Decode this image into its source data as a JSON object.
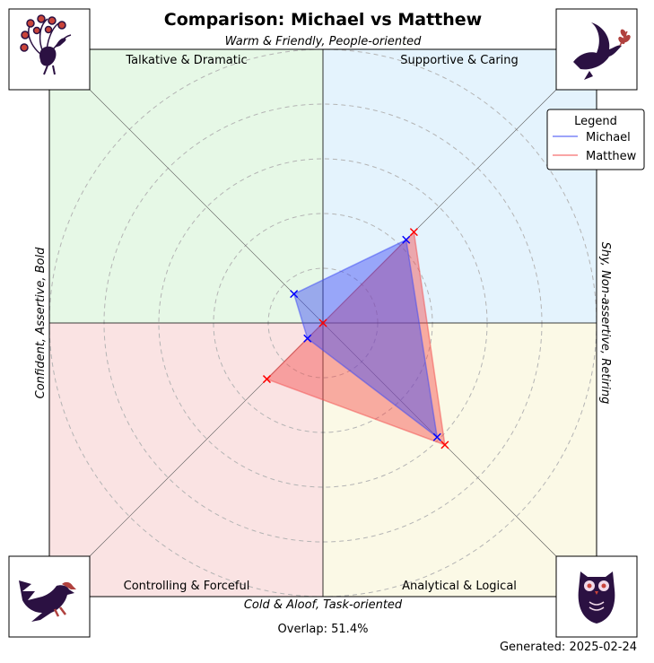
{
  "chart_data": {
    "type": "radar",
    "title": "Comparison: Michael vs Matthew",
    "axes": {
      "top": "Warm & Friendly, People-oriented",
      "bottom": "Cold & Aloof, Task-oriented",
      "left": "Confident, Assertive, Bold",
      "right": "Shy, Non-assertive, Retiring"
    },
    "quadrants": {
      "top_left": {
        "label": "Talkative & Dramatic",
        "color": "#e6f8e6",
        "icon": "peacock-icon"
      },
      "top_right": {
        "label": "Supportive & Caring",
        "color": "#e4f3fd",
        "icon": "dove-icon"
      },
      "bottom_left": {
        "label": "Controlling & Forceful",
        "color": "#fae3e3",
        "icon": "eagle-icon"
      },
      "bottom_right": {
        "label": "Analytical & Logical",
        "color": "#fbf9e6",
        "icon": "owl-icon"
      }
    },
    "range": [
      0,
      10
    ],
    "rings": [
      2,
      4,
      6,
      8,
      10
    ],
    "grid": true,
    "directions": [
      "Supportive & Caring",
      "Talkative & Dramatic",
      "Controlling & Forceful",
      "Analytical & Logical"
    ],
    "series": [
      {
        "name": "Michael",
        "color": "#3b49f5",
        "values": [
          4.3,
          1.5,
          0.8,
          5.9
        ]
      },
      {
        "name": "Matthew",
        "color": "#f44b4b",
        "values": [
          4.7,
          0,
          2.9,
          6.3
        ]
      }
    ],
    "legend": {
      "title": "Legend",
      "position": "top-right"
    }
  },
  "footer": {
    "overlap": "Overlap: 51.4%",
    "generated": "Generated: 2025-02-24"
  }
}
